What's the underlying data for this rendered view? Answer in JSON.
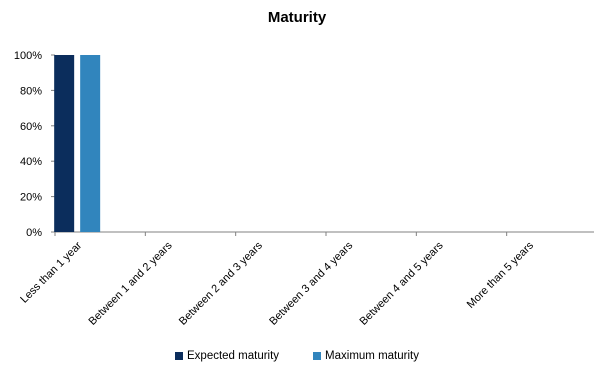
{
  "colors": {
    "expected": "#0b2d5c",
    "maximum": "#3185bd",
    "axis": "#808080"
  },
  "chart_data": {
    "type": "bar",
    "title": "Maturity",
    "xlabel": "",
    "ylabel": "",
    "categories": [
      "Less than 1 year",
      "Between 1 and 2 years",
      "Between 2 and 3 years",
      "Between 3 and 4 years",
      "Between 4 and 5 years",
      "More than 5 years"
    ],
    "series": [
      {
        "name": "Expected maturity",
        "values": [
          100,
          0,
          0,
          0,
          0,
          0
        ]
      },
      {
        "name": "Maximum maturity",
        "values": [
          100,
          0,
          0,
          0,
          0,
          0
        ]
      }
    ],
    "ylim": [
      0,
      100
    ],
    "yticks": [
      "0%",
      "20%",
      "40%",
      "60%",
      "80%",
      "100%"
    ],
    "grid": false,
    "legend_position": "bottom"
  }
}
